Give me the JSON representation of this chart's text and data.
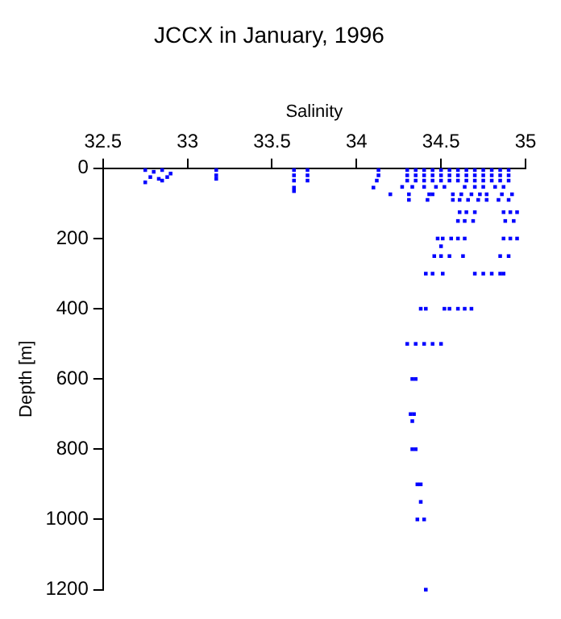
{
  "chart_data": {
    "type": "scatter",
    "title": "JCCX in January, 1996",
    "xlabel": "Salinity",
    "ylabel": "Depth [m]",
    "xlim": [
      32.5,
      35
    ],
    "xticks": [
      32.5,
      33,
      33.5,
      34,
      34.5,
      35
    ],
    "ylim": [
      1200,
      0
    ],
    "yticks": [
      0,
      200,
      400,
      600,
      800,
      1000,
      1200
    ],
    "grid": false,
    "legend": false,
    "marker": "square",
    "series": [
      {
        "color": "#0000ff",
        "x": [
          32.75,
          32.8,
          32.85,
          32.9,
          32.78,
          32.83,
          32.88,
          32.75,
          32.85,
          33.17,
          33.17,
          33.17,
          33.63,
          33.63,
          33.63,
          33.63,
          33.63,
          33.71,
          33.71,
          33.71,
          34.13,
          34.13,
          34.12,
          34.1,
          34.3,
          34.35,
          34.4,
          34.45,
          34.5,
          34.55,
          34.6,
          34.65,
          34.7,
          34.75,
          34.8,
          34.85,
          34.9,
          34.3,
          34.35,
          34.4,
          34.45,
          34.5,
          34.55,
          34.6,
          34.65,
          34.7,
          34.75,
          34.8,
          34.85,
          34.9,
          34.3,
          34.35,
          34.4,
          34.45,
          34.5,
          34.55,
          34.6,
          34.65,
          34.7,
          34.75,
          34.8,
          34.85,
          34.9,
          34.27,
          34.33,
          34.4,
          34.47,
          34.52,
          34.64,
          34.7,
          34.75,
          34.82,
          34.87,
          34.2,
          34.31,
          34.43,
          34.45,
          34.57,
          34.62,
          34.68,
          34.73,
          34.77,
          34.86,
          34.92,
          34.31,
          34.42,
          34.57,
          34.61,
          34.66,
          34.72,
          34.77,
          34.84,
          34.9,
          34.61,
          34.65,
          34.7,
          34.87,
          34.91,
          34.95,
          34.6,
          34.64,
          34.69,
          34.88,
          34.93,
          34.48,
          34.51,
          34.56,
          34.6,
          34.64,
          34.87,
          34.91,
          34.95,
          34.5,
          34.46,
          34.5,
          34.55,
          34.63,
          34.85,
          34.9,
          34.41,
          34.45,
          34.51,
          34.7,
          34.75,
          34.8,
          34.85,
          34.87,
          34.38,
          34.41,
          34.52,
          34.55,
          34.6,
          34.64,
          34.68,
          34.3,
          34.35,
          34.4,
          34.45,
          34.5,
          34.33,
          34.35,
          34.32,
          34.34,
          34.33,
          34.33,
          34.35,
          34.36,
          34.38,
          34.38,
          34.36,
          34.4,
          34.41
        ],
        "values": [
          5,
          10,
          5,
          15,
          25,
          30,
          25,
          40,
          35,
          5,
          20,
          30,
          5,
          20,
          35,
          55,
          65,
          5,
          20,
          35,
          5,
          20,
          35,
          55,
          5,
          5,
          5,
          5,
          5,
          5,
          5,
          5,
          5,
          5,
          5,
          5,
          5,
          20,
          20,
          20,
          20,
          20,
          20,
          20,
          20,
          20,
          20,
          20,
          20,
          20,
          35,
          35,
          35,
          35,
          35,
          35,
          35,
          35,
          35,
          35,
          35,
          35,
          35,
          53,
          53,
          53,
          53,
          53,
          53,
          53,
          53,
          53,
          53,
          74,
          74,
          74,
          74,
          74,
          74,
          74,
          74,
          74,
          74,
          74,
          90,
          90,
          90,
          90,
          90,
          90,
          90,
          90,
          90,
          125,
          125,
          125,
          125,
          125,
          125,
          150,
          150,
          150,
          150,
          150,
          200,
          200,
          200,
          200,
          200,
          200,
          200,
          200,
          222,
          250,
          250,
          250,
          250,
          250,
          250,
          300,
          300,
          300,
          300,
          300,
          300,
          300,
          300,
          400,
          400,
          400,
          400,
          400,
          400,
          400,
          500,
          500,
          500,
          500,
          500,
          600,
          600,
          700,
          700,
          720,
          800,
          800,
          900,
          900,
          950,
          1000,
          1000,
          1200
        ]
      }
    ]
  }
}
